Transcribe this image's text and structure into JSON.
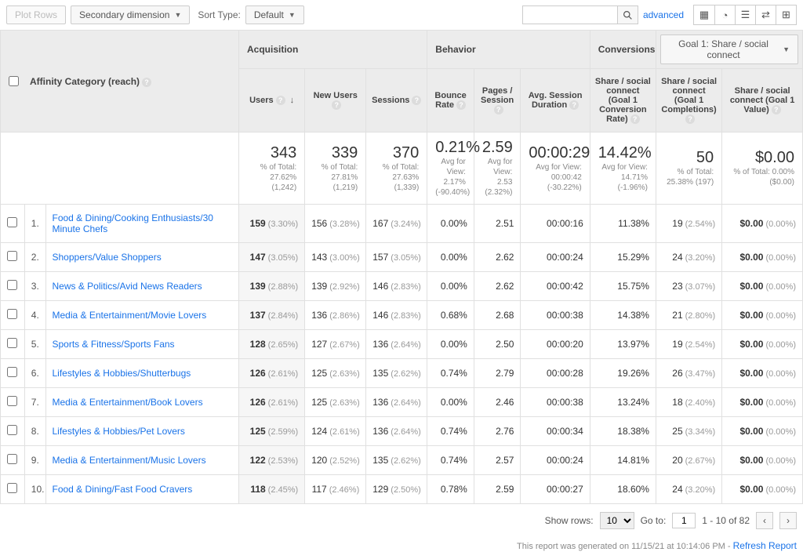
{
  "toolbar": {
    "plot_rows": "Plot Rows",
    "secondary_dimension": "Secondary dimension",
    "sort_type_label": "Sort Type:",
    "sort_type_value": "Default",
    "advanced": "advanced"
  },
  "goal_selector": "Goal 1: Share / social connect",
  "dim_header": "Affinity Category (reach)",
  "groups": {
    "acq": "Acquisition",
    "beh": "Behavior",
    "conv": "Conversions"
  },
  "metrics": {
    "users": "Users",
    "new_users": "New Users",
    "sessions": "Sessions",
    "bounce": "Bounce Rate",
    "pps": "Pages / Session",
    "asd": "Avg. Session Duration",
    "cr": "Share / social connect (Goal 1 Conversion Rate)",
    "comp": "Share / social connect (Goal 1 Completions)",
    "val": "Share / social connect (Goal 1 Value)"
  },
  "summary": {
    "users": {
      "big": "343",
      "sub": "% of Total: 27.62% (1,242)"
    },
    "new_users": {
      "big": "339",
      "sub": "% of Total: 27.81% (1,219)"
    },
    "sessions": {
      "big": "370",
      "sub": "% of Total: 27.63% (1,339)"
    },
    "bounce": {
      "big": "0.21%",
      "sub": "Avg for View: 2.17% (-90.40%)"
    },
    "pps": {
      "big": "2.59",
      "sub": "Avg for View: 2.53 (2.32%)"
    },
    "asd": {
      "big": "00:00:29",
      "sub": "Avg for View: 00:00:42 (-30.22%)"
    },
    "cr": {
      "big": "14.42%",
      "sub": "Avg for View: 14.71% (-1.96%)"
    },
    "comp": {
      "big": "50",
      "sub": "% of Total: 25.38% (197)"
    },
    "val": {
      "big": "$0.00",
      "sub": "% of Total: 0.00% ($0.00)"
    }
  },
  "rows": [
    {
      "idx": "1.",
      "name": "Food & Dining/Cooking Enthusiasts/30 Minute Chefs",
      "users": "159",
      "users_p": "(3.30%)",
      "nu": "156",
      "nu_p": "(3.28%)",
      "s": "167",
      "s_p": "(3.24%)",
      "b": "0.00%",
      "pps": "2.51",
      "asd": "00:00:16",
      "cr": "11.38%",
      "comp": "19",
      "comp_p": "(2.54%)",
      "val": "$0.00",
      "val_p": "(0.00%)"
    },
    {
      "idx": "2.",
      "name": "Shoppers/Value Shoppers",
      "users": "147",
      "users_p": "(3.05%)",
      "nu": "143",
      "nu_p": "(3.00%)",
      "s": "157",
      "s_p": "(3.05%)",
      "b": "0.00%",
      "pps": "2.62",
      "asd": "00:00:24",
      "cr": "15.29%",
      "comp": "24",
      "comp_p": "(3.20%)",
      "val": "$0.00",
      "val_p": "(0.00%)"
    },
    {
      "idx": "3.",
      "name": "News & Politics/Avid News Readers",
      "users": "139",
      "users_p": "(2.88%)",
      "nu": "139",
      "nu_p": "(2.92%)",
      "s": "146",
      "s_p": "(2.83%)",
      "b": "0.00%",
      "pps": "2.62",
      "asd": "00:00:42",
      "cr": "15.75%",
      "comp": "23",
      "comp_p": "(3.07%)",
      "val": "$0.00",
      "val_p": "(0.00%)"
    },
    {
      "idx": "4.",
      "name": "Media & Entertainment/Movie Lovers",
      "users": "137",
      "users_p": "(2.84%)",
      "nu": "136",
      "nu_p": "(2.86%)",
      "s": "146",
      "s_p": "(2.83%)",
      "b": "0.68%",
      "pps": "2.68",
      "asd": "00:00:38",
      "cr": "14.38%",
      "comp": "21",
      "comp_p": "(2.80%)",
      "val": "$0.00",
      "val_p": "(0.00%)"
    },
    {
      "idx": "5.",
      "name": "Sports & Fitness/Sports Fans",
      "users": "128",
      "users_p": "(2.65%)",
      "nu": "127",
      "nu_p": "(2.67%)",
      "s": "136",
      "s_p": "(2.64%)",
      "b": "0.00%",
      "pps": "2.50",
      "asd": "00:00:20",
      "cr": "13.97%",
      "comp": "19",
      "comp_p": "(2.54%)",
      "val": "$0.00",
      "val_p": "(0.00%)"
    },
    {
      "idx": "6.",
      "name": "Lifestyles & Hobbies/Shutterbugs",
      "users": "126",
      "users_p": "(2.61%)",
      "nu": "125",
      "nu_p": "(2.63%)",
      "s": "135",
      "s_p": "(2.62%)",
      "b": "0.74%",
      "pps": "2.79",
      "asd": "00:00:28",
      "cr": "19.26%",
      "comp": "26",
      "comp_p": "(3.47%)",
      "val": "$0.00",
      "val_p": "(0.00%)"
    },
    {
      "idx": "7.",
      "name": "Media & Entertainment/Book Lovers",
      "users": "126",
      "users_p": "(2.61%)",
      "nu": "125",
      "nu_p": "(2.63%)",
      "s": "136",
      "s_p": "(2.64%)",
      "b": "0.00%",
      "pps": "2.46",
      "asd": "00:00:38",
      "cr": "13.24%",
      "comp": "18",
      "comp_p": "(2.40%)",
      "val": "$0.00",
      "val_p": "(0.00%)"
    },
    {
      "idx": "8.",
      "name": "Lifestyles & Hobbies/Pet Lovers",
      "users": "125",
      "users_p": "(2.59%)",
      "nu": "124",
      "nu_p": "(2.61%)",
      "s": "136",
      "s_p": "(2.64%)",
      "b": "0.74%",
      "pps": "2.76",
      "asd": "00:00:34",
      "cr": "18.38%",
      "comp": "25",
      "comp_p": "(3.34%)",
      "val": "$0.00",
      "val_p": "(0.00%)"
    },
    {
      "idx": "9.",
      "name": "Media & Entertainment/Music Lovers",
      "users": "122",
      "users_p": "(2.53%)",
      "nu": "120",
      "nu_p": "(2.52%)",
      "s": "135",
      "s_p": "(2.62%)",
      "b": "0.74%",
      "pps": "2.57",
      "asd": "00:00:24",
      "cr": "14.81%",
      "comp": "20",
      "comp_p": "(2.67%)",
      "val": "$0.00",
      "val_p": "(0.00%)"
    },
    {
      "idx": "10.",
      "name": "Food & Dining/Fast Food Cravers",
      "users": "118",
      "users_p": "(2.45%)",
      "nu": "117",
      "nu_p": "(2.46%)",
      "s": "129",
      "s_p": "(2.50%)",
      "b": "0.78%",
      "pps": "2.59",
      "asd": "00:00:27",
      "cr": "18.60%",
      "comp": "24",
      "comp_p": "(3.20%)",
      "val": "$0.00",
      "val_p": "(0.00%)"
    }
  ],
  "footer": {
    "show_rows": "Show rows:",
    "show_rows_val": "10",
    "goto": "Go to:",
    "goto_val": "1",
    "range": "1 - 10 of 82"
  },
  "report_info": {
    "text": "This report was generated on 11/15/21 at 10:14:06 PM - ",
    "refresh": "Refresh Report"
  }
}
